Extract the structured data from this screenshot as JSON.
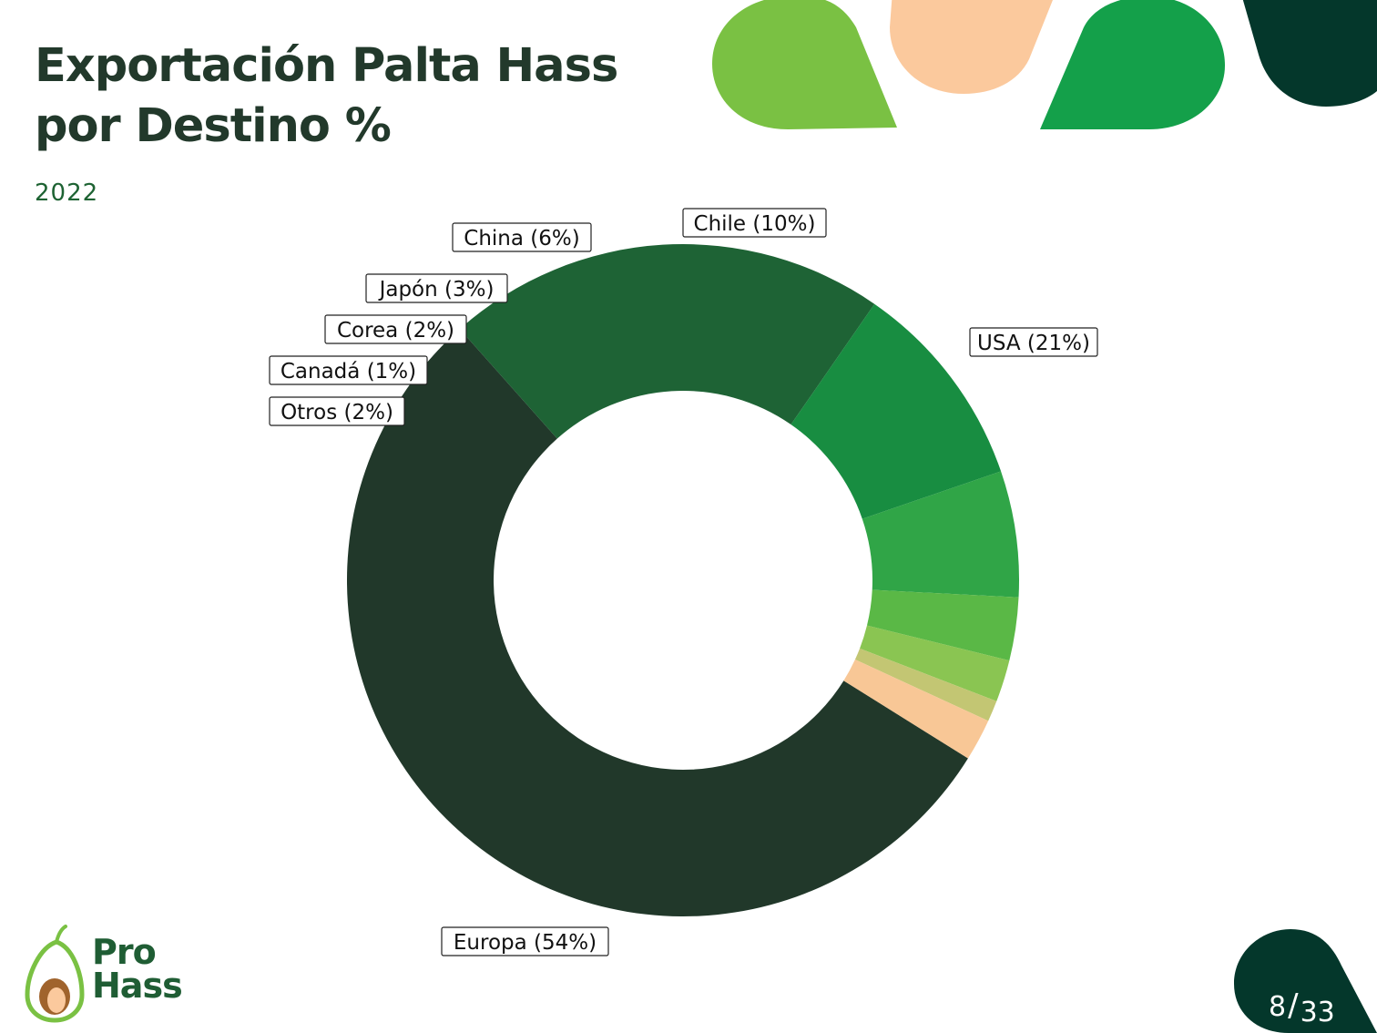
{
  "header": {
    "title_line1": "Exportación Palta Hass",
    "title_line2": "por Destino %",
    "subtitle": "2022"
  },
  "colors": {
    "title": "#22392b",
    "subtitle": "#1e6333",
    "deco_light_green": "#7ac143",
    "deco_peach": "#fbc99d",
    "deco_green": "#14a04a",
    "deco_dark": "#04372b"
  },
  "chart_data": {
    "type": "donut",
    "title": "Exportación Palta Hass por Destino %",
    "subtitle": "2022",
    "unit": "%",
    "slices": [
      {
        "label": "Europa (54%)",
        "name": "Europa",
        "value": 54,
        "color": "#21382a"
      },
      {
        "label": "USA (21%)",
        "name": "USA",
        "value": 21,
        "color": "#1e6335"
      },
      {
        "label": "Chile (10%)",
        "name": "Chile",
        "value": 10,
        "color": "#188d41"
      },
      {
        "label": "China (6%)",
        "name": "China",
        "value": 6,
        "color": "#30a547"
      },
      {
        "label": "Japón (3%)",
        "name": "Japón",
        "value": 3,
        "color": "#5ab846"
      },
      {
        "label": "Corea (2%)",
        "name": "Corea",
        "value": 2,
        "color": "#8ac552"
      },
      {
        "label": "Canadá (1%)",
        "name": "Canadá",
        "value": 1,
        "color": "#c3c673"
      },
      {
        "label": "Otros (2%)",
        "name": "Otros",
        "value": 2,
        "color": "#f8c796"
      }
    ]
  },
  "logo": {
    "line1": "Pro",
    "line2": "Hass",
    "icon": "avocado-icon"
  },
  "pager": {
    "current": "8",
    "separator": "/",
    "total": "33"
  }
}
